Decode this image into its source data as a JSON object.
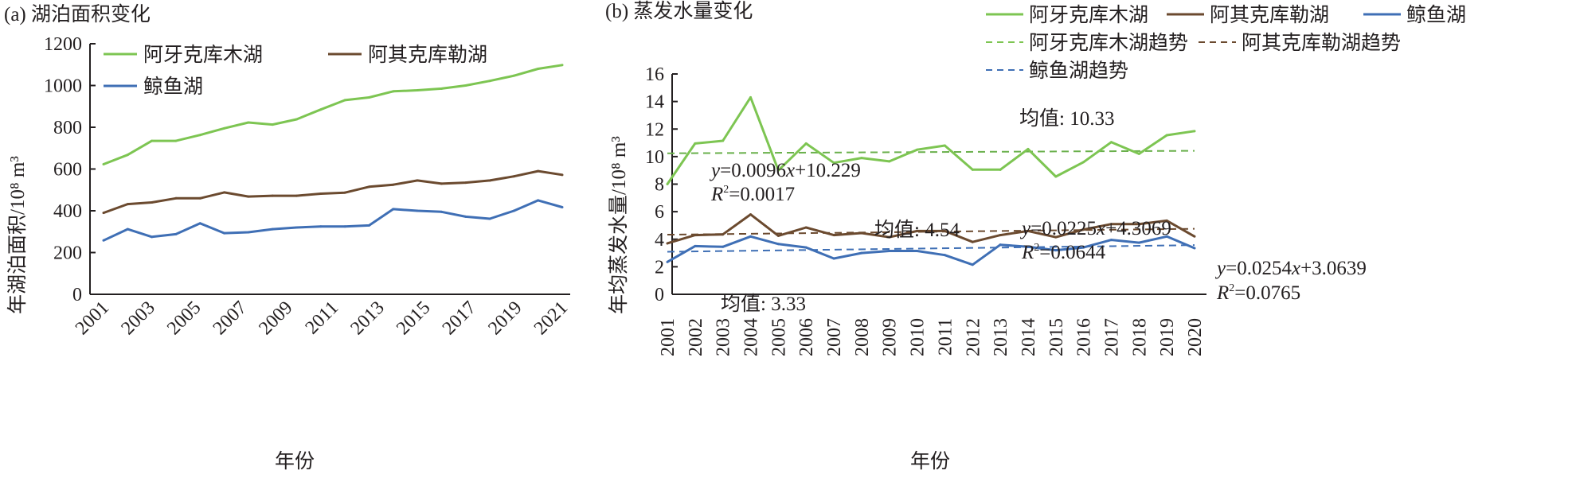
{
  "chart_data": [
    {
      "type": "line",
      "title": "(a) 湖泊面积变化",
      "xlabel": "年份",
      "ylabel": "年湖泊面积/10⁸ m³",
      "ylim": [
        0,
        1200
      ],
      "yticks": [
        0,
        200,
        400,
        600,
        800,
        1000,
        1200
      ],
      "xtick_labels": [
        "2001",
        "2003",
        "2005",
        "2007",
        "2009",
        "2011",
        "2013",
        "2015",
        "2017",
        "2019",
        "2021"
      ],
      "x": [
        2001,
        2002,
        2003,
        2004,
        2005,
        2006,
        2007,
        2008,
        2009,
        2010,
        2011,
        2012,
        2013,
        2014,
        2015,
        2016,
        2017,
        2018,
        2019,
        2020
      ],
      "legend": "top-left",
      "series": [
        {
          "name": "阿牙克库木湖",
          "color": "#7dc552",
          "values": [
            623,
            668,
            735,
            735,
            763,
            795,
            823,
            813,
            838,
            885,
            930,
            943,
            972,
            977,
            985,
            1000,
            1022,
            1047,
            1080,
            1098
          ]
        },
        {
          "name": "阿其克库勒湖",
          "color": "#6b4a2f",
          "values": [
            390,
            432,
            440,
            460,
            460,
            488,
            468,
            472,
            472,
            482,
            487,
            515,
            525,
            545,
            530,
            535,
            545,
            565,
            590,
            572
          ]
        },
        {
          "name": "鲸鱼湖",
          "color": "#3f6fb5",
          "values": [
            258,
            312,
            275,
            288,
            340,
            293,
            297,
            312,
            320,
            325,
            325,
            330,
            408,
            400,
            395,
            372,
            362,
            400,
            450,
            417
          ]
        }
      ]
    },
    {
      "type": "line",
      "title": "(b) 蒸发水量变化",
      "xlabel": "年份",
      "ylabel": "年均蒸发水量/10⁸ m³",
      "ylim": [
        0,
        16
      ],
      "yticks": [
        0,
        2,
        4,
        6,
        8,
        10,
        12,
        14,
        16
      ],
      "xtick_labels": [
        "2001",
        "2002",
        "2003",
        "2004",
        "2005",
        "2006",
        "2007",
        "2008",
        "2009",
        "2010",
        "2011",
        "2012",
        "2013",
        "2014",
        "2015",
        "2016",
        "2017",
        "2018",
        "2019",
        "2020"
      ],
      "x": [
        2001,
        2002,
        2003,
        2004,
        2005,
        2006,
        2007,
        2008,
        2009,
        2010,
        2011,
        2012,
        2013,
        2014,
        2015,
        2016,
        2017,
        2018,
        2019,
        2020
      ],
      "legend": "top",
      "series": [
        {
          "name": "阿牙克库木湖",
          "color": "#7dc552",
          "values": [
            8.0,
            10.95,
            11.15,
            14.3,
            9.0,
            10.95,
            9.55,
            9.9,
            9.65,
            10.5,
            10.8,
            9.05,
            9.05,
            10.55,
            8.55,
            9.6,
            11.05,
            10.2,
            11.55,
            11.85
          ]
        },
        {
          "name": "阿其克库勒湖",
          "color": "#6b4a2f",
          "values": [
            3.7,
            4.3,
            4.35,
            5.8,
            4.25,
            4.85,
            4.3,
            4.45,
            4.15,
            4.6,
            4.6,
            3.8,
            4.3,
            4.6,
            4.15,
            4.7,
            5.1,
            5.1,
            5.35,
            4.2
          ]
        },
        {
          "name": "鲸鱼湖",
          "color": "#3f6fb5",
          "values": [
            2.35,
            3.5,
            3.45,
            4.2,
            3.65,
            3.4,
            2.6,
            3.0,
            3.15,
            3.15,
            2.85,
            2.15,
            3.6,
            3.45,
            3.2,
            3.4,
            3.95,
            3.75,
            4.2,
            3.35
          ]
        }
      ],
      "trends": [
        {
          "name": "阿牙克库木湖趋势",
          "color": "#7dc552",
          "slope": 0.0096,
          "intercept": 10.229,
          "equation_prefix": "y",
          "equation": "=0.0096",
          "equation_x": "x",
          "equation_suffix": "+10.229",
          "r2_label": "R",
          "r2_value": "=0.0017",
          "mean_label": "均值: 10.33"
        },
        {
          "name": "阿其克库勒湖趋势",
          "color": "#6b4a2f",
          "slope": 0.0225,
          "intercept": 4.3069,
          "equation_prefix": "y",
          "equation": "=0.0225",
          "equation_x": "x",
          "equation_suffix": "+4.3069",
          "r2_label": "R",
          "r2_value": "=0.0644",
          "mean_label": "均值: 4.54"
        },
        {
          "name": "鲸鱼湖趋势",
          "color": "#3f6fb5",
          "slope": 0.0254,
          "intercept": 3.0639,
          "equation_prefix": "y",
          "equation": "=0.0254",
          "equation_x": "x",
          "equation_suffix": "+3.0639",
          "r2_label": "R",
          "r2_value": "=0.0765",
          "mean_label": "均值: 3.33"
        }
      ]
    }
  ]
}
